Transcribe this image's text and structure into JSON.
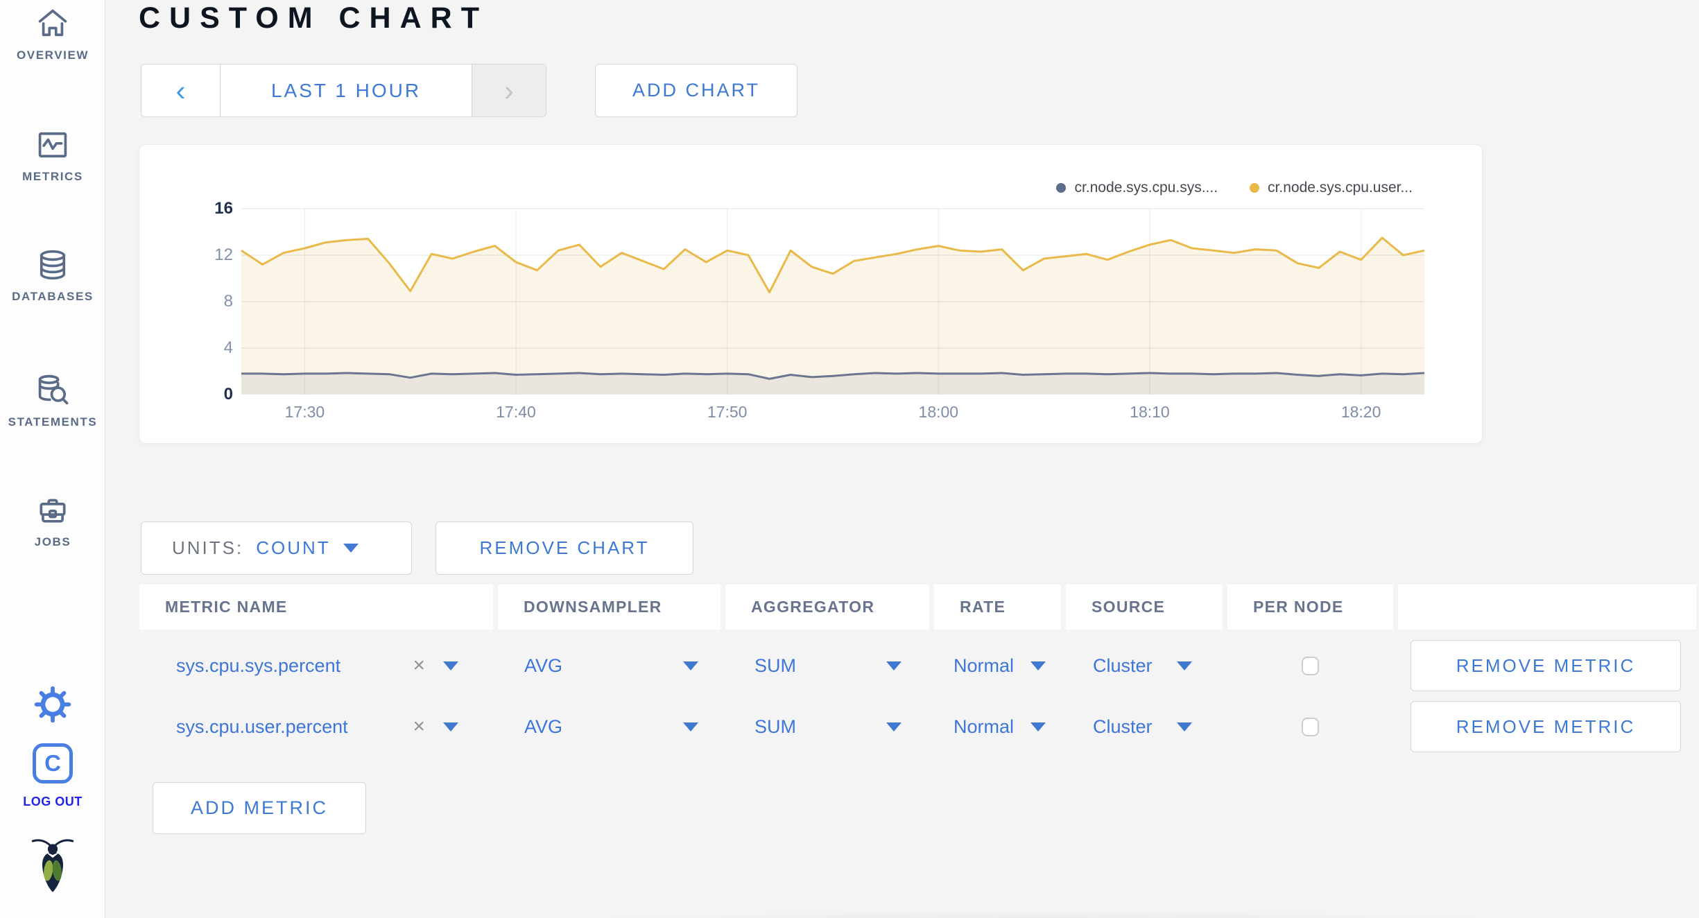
{
  "sidebar": {
    "items": [
      {
        "label": "OVERVIEW",
        "icon": "home-icon"
      },
      {
        "label": "METRICS",
        "icon": "metrics-icon"
      },
      {
        "label": "DATABASES",
        "icon": "database-icon"
      },
      {
        "label": "STATEMENTS",
        "icon": "statements-icon"
      },
      {
        "label": "JOBS",
        "icon": "jobs-icon"
      }
    ],
    "cloud_badge": "C",
    "logout_label": "LOG OUT"
  },
  "header": {
    "title": "CUSTOM CHART"
  },
  "toolbar": {
    "prev_arrow": "‹",
    "time_range": "LAST 1 HOUR",
    "next_arrow": "›",
    "add_chart": "ADD CHART"
  },
  "chart_card": {
    "legend": [
      {
        "label": "cr.node.sys.cpu.sys....",
        "color": "#5f6d8c"
      },
      {
        "label": "cr.node.sys.cpu.user...",
        "color": "#e9b94a"
      }
    ]
  },
  "chart_data": {
    "type": "line",
    "title": "",
    "xlabel": "",
    "ylabel": "",
    "grid": true,
    "legend_position": "top-right",
    "units": "count",
    "ylim": [
      0,
      16
    ],
    "yticks": [
      16,
      12,
      8,
      4,
      0
    ],
    "x_count": 57,
    "xticks": [
      {
        "i": 3,
        "label": "17:30"
      },
      {
        "i": 13,
        "label": "17:40"
      },
      {
        "i": 23,
        "label": "17:50"
      },
      {
        "i": 33,
        "label": "18:00"
      },
      {
        "i": 43,
        "label": "18:10"
      },
      {
        "i": 53,
        "label": "18:20"
      }
    ],
    "series": [
      {
        "name": "cr.node.sys.cpu.sys....",
        "color": "#6b7690",
        "fill": "#eae6dd",
        "values": [
          1.8,
          1.8,
          1.75,
          1.8,
          1.8,
          1.85,
          1.8,
          1.75,
          1.45,
          1.8,
          1.75,
          1.8,
          1.85,
          1.7,
          1.75,
          1.8,
          1.85,
          1.75,
          1.8,
          1.75,
          1.7,
          1.8,
          1.75,
          1.8,
          1.75,
          1.35,
          1.7,
          1.5,
          1.6,
          1.75,
          1.85,
          1.8,
          1.85,
          1.8,
          1.8,
          1.8,
          1.85,
          1.7,
          1.75,
          1.8,
          1.8,
          1.75,
          1.8,
          1.85,
          1.8,
          1.8,
          1.75,
          1.8,
          1.8,
          1.85,
          1.7,
          1.6,
          1.75,
          1.65,
          1.8,
          1.75,
          1.85
        ]
      },
      {
        "name": "cr.node.sys.cpu.user...",
        "color": "#e9b94a",
        "fill": "#faf5e7",
        "values": [
          12.4,
          11.2,
          12.2,
          12.6,
          13.1,
          13.3,
          13.4,
          11.3,
          8.9,
          12.1,
          11.7,
          12.3,
          12.8,
          11.4,
          10.7,
          12.4,
          12.9,
          11.0,
          12.2,
          11.5,
          10.8,
          12.5,
          11.4,
          12.4,
          12.0,
          8.8,
          12.4,
          11.0,
          10.4,
          11.5,
          11.8,
          12.1,
          12.5,
          12.8,
          12.4,
          12.3,
          12.5,
          10.7,
          11.7,
          11.9,
          12.1,
          11.6,
          12.3,
          12.9,
          13.3,
          12.6,
          12.4,
          12.2,
          12.5,
          12.4,
          11.3,
          10.9,
          12.3,
          11.6,
          13.5,
          12.0,
          12.4
        ]
      }
    ]
  },
  "units_control": {
    "label": "UNITS:",
    "value": "COUNT"
  },
  "remove_chart_label": "REMOVE CHART",
  "table": {
    "headers": [
      "METRIC NAME",
      "DOWNSAMPLER",
      "AGGREGATOR",
      "RATE",
      "SOURCE",
      "PER NODE",
      ""
    ],
    "rows": [
      {
        "metric": "sys.cpu.sys.percent",
        "clear": "×",
        "downsampler": "AVG",
        "aggregator": "SUM",
        "rate": "Normal",
        "source": "Cluster",
        "per_node_checked": false,
        "remove_label": "REMOVE METRIC"
      },
      {
        "metric": "sys.cpu.user.percent",
        "clear": "×",
        "downsampler": "AVG",
        "aggregator": "SUM",
        "rate": "Normal",
        "source": "Cluster",
        "per_node_checked": false,
        "remove_label": "REMOVE METRIC"
      }
    ]
  },
  "add_metric_label": "ADD METRIC"
}
